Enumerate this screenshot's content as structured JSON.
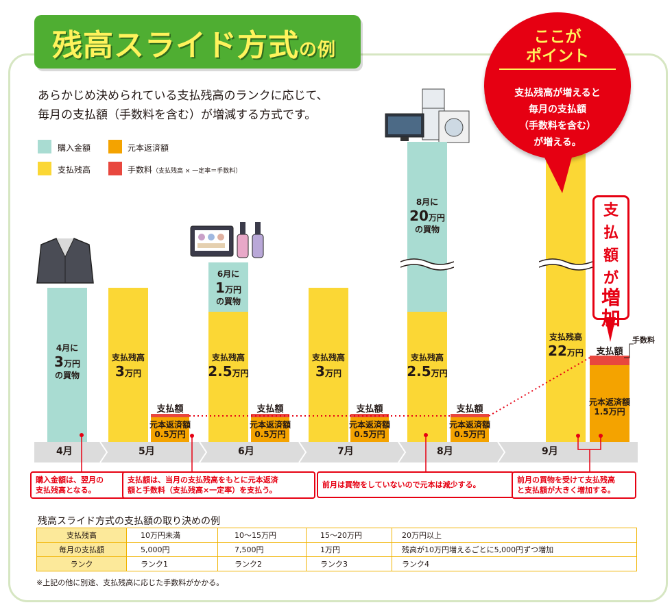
{
  "title": {
    "main": "残高スライド方式",
    "suffix": "の例"
  },
  "intro": {
    "line1": "あらかじめ決められている支払残高のランクに応じて、",
    "line2": "毎月の支払額（手数料を含む）が増減する方式です。"
  },
  "legend": {
    "purchase": "購入金額",
    "principal": "元本返済額",
    "balance": "支払残高",
    "fee": "手数料",
    "fee_note": "（支払残高 × 一定率＝手数料）"
  },
  "colors": {
    "teal": "#a9dcd2",
    "yellow": "#fbd735",
    "orange": "#f4a300",
    "red": "#e8473e",
    "green": "#4fae32",
    "accent": "#e60012"
  },
  "months": [
    "4月",
    "5月",
    "6月",
    "7月",
    "8月",
    "9月"
  ],
  "bars": {
    "apr": {
      "l1": "4月に",
      "l2": "3",
      "l2u": "万円",
      "l3": "の買物"
    },
    "may": {
      "l1": "支払残高",
      "l2": "3",
      "l2u": "万円"
    },
    "jun_purchase": {
      "l1": "6月に",
      "l2": "1",
      "l2u": "万円",
      "l3": "の買物"
    },
    "jun": {
      "l1": "支払残高",
      "l2": "2.5",
      "l2u": "万円"
    },
    "jul": {
      "l1": "支払残高",
      "l2": "3",
      "l2u": "万円"
    },
    "aug_purchase": {
      "l1": "8月に",
      "l2": "20",
      "l2u": "万円",
      "l3": "の買物"
    },
    "aug": {
      "l1": "支払残高",
      "l2": "2.5",
      "l2u": "万円"
    },
    "sep": {
      "l1": "支払残高",
      "l2": "22",
      "l2u": "万円"
    }
  },
  "payment": {
    "title": "支払額",
    "principal_label": "元本返済額",
    "amount_small": "0.5万円",
    "amount_large": "1.5万円",
    "fee_label": "手数料"
  },
  "point": {
    "heading1": "ここが",
    "heading2": "ポイント",
    "body1": "支払残高が増えると",
    "body2": "毎月の支払額",
    "body3": "（手数料を含む）",
    "body4": "が増える。"
  },
  "increase": {
    "c1": "支",
    "c2": "払",
    "c3": "額",
    "c4": "が",
    "c5": "増",
    "c6": "加"
  },
  "callouts": {
    "c1_line1": "購入金額は、翌月の",
    "c1_line2": "支払残高となる。",
    "c2_line1": "支払額は、当月の支払残高をもとに元本返済",
    "c2_line2": "額と手数料（支払残高×一定率）を支払う。",
    "c3": "前月は買物をしていないので元本は減少する。",
    "c4_line1": "前月の買物を受けて支払残高",
    "c4_line2": "と支払額が大きく増加する。"
  },
  "table": {
    "heading": "残高スライド方式の支払額の取り決めの例",
    "rows": [
      [
        "支払残高",
        "10万円未満",
        "10〜15万円",
        "15〜20万円",
        "20万円以上"
      ],
      [
        "毎月の支払額",
        "5,000円",
        "7,500円",
        "1万円",
        "残高が10万円増えるごとに5,000円ずつ増加"
      ],
      [
        "ランク",
        "ランク1",
        "ランク2",
        "ランク3",
        "ランク4"
      ]
    ],
    "footnote": "※上記の他に別途、支払残高に応じた手数料がかかる。"
  }
}
